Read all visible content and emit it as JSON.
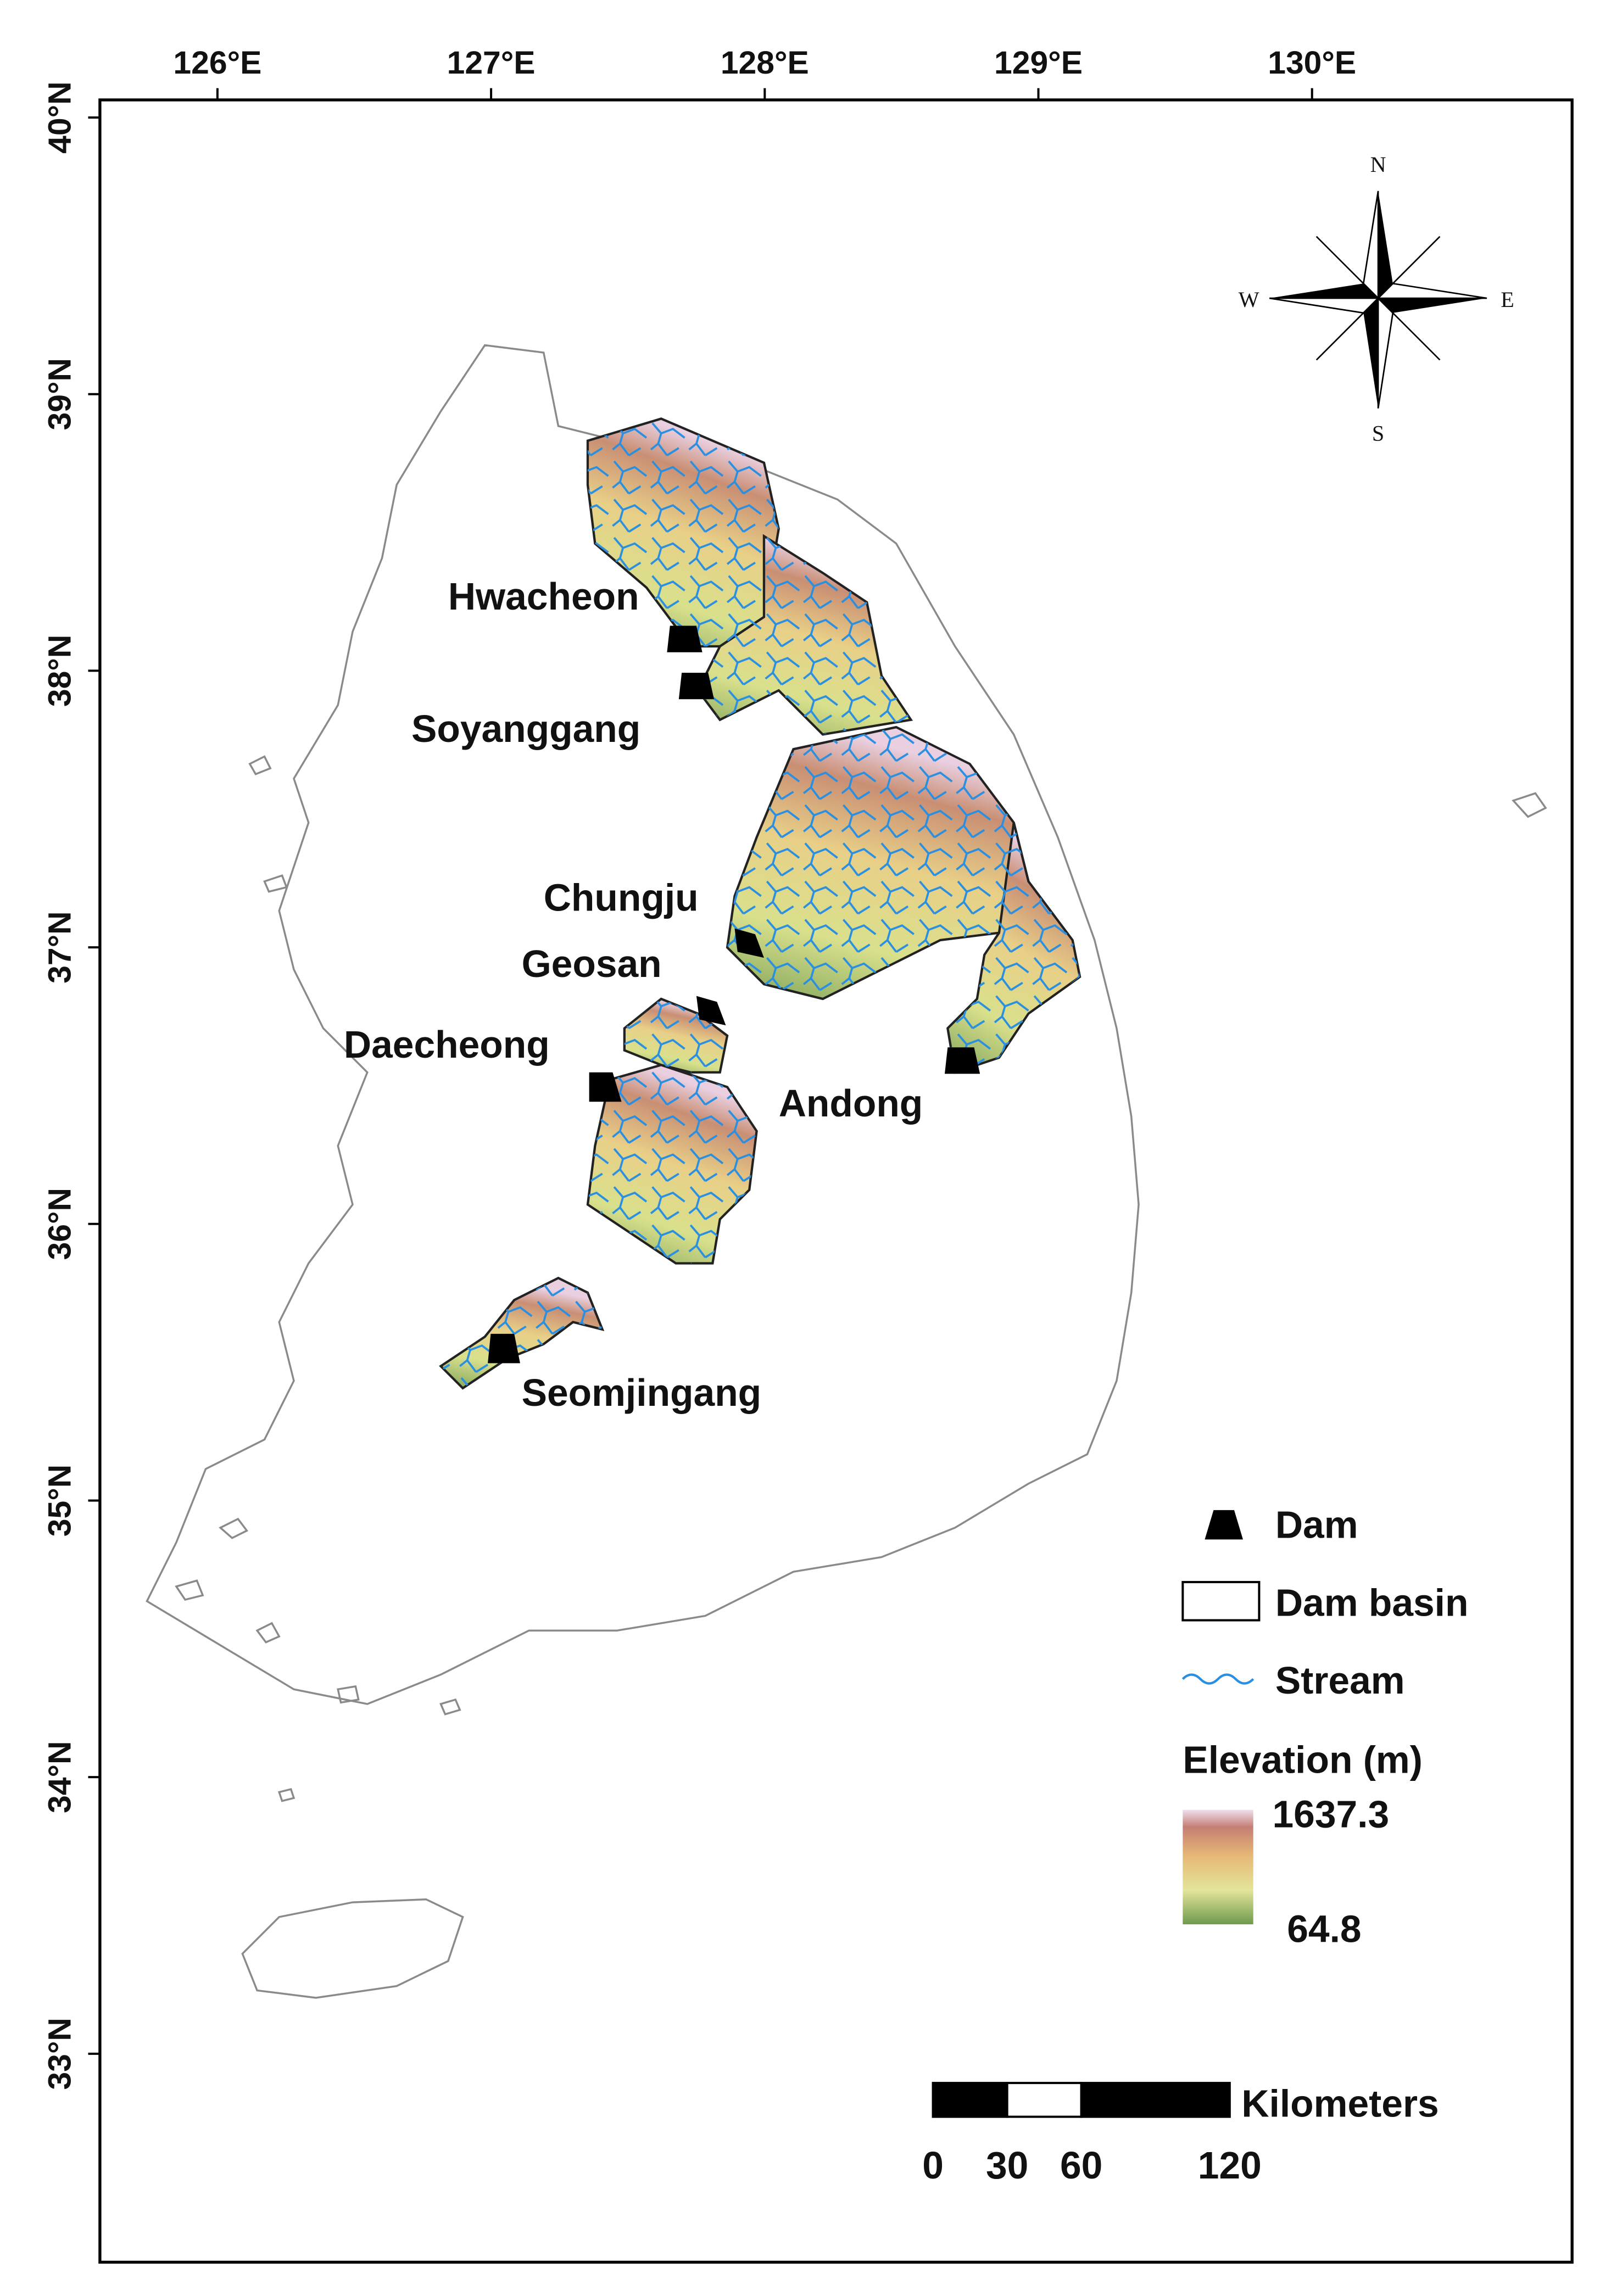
{
  "map": {
    "lon_ticks": [
      {
        "value": 126,
        "label": "126°E"
      },
      {
        "value": 127,
        "label": "127°E"
      },
      {
        "value": 128,
        "label": "128°E"
      },
      {
        "value": 129,
        "label": "129°E"
      },
      {
        "value": 130,
        "label": "130°E"
      }
    ],
    "lat_ticks": [
      {
        "value": 40,
        "label": "40°N"
      },
      {
        "value": 39,
        "label": "39°N"
      },
      {
        "value": 38,
        "label": "38°N"
      },
      {
        "value": 37,
        "label": "37°N"
      },
      {
        "value": 36,
        "label": "36°N"
      },
      {
        "value": 35,
        "label": "35°N"
      },
      {
        "value": 34,
        "label": "34°N"
      },
      {
        "value": 33,
        "label": "33°N"
      }
    ],
    "compass": {
      "n": "N",
      "e": "E",
      "s": "S",
      "w": "W"
    },
    "dams": [
      "Hwacheon",
      "Soyanggang",
      "Chungju",
      "Geosan",
      "Daecheong",
      "Andong",
      "Seomjingang"
    ],
    "legend": {
      "dam": "Dam",
      "basin": "Dam basin",
      "stream": "Stream",
      "elevation_title": "Elevation (m)",
      "elevation_max": 1637.3,
      "elevation_min": 64.8
    },
    "scale_bar": {
      "ticks": [
        0,
        30,
        60,
        120
      ],
      "unit": "Kilometers"
    }
  }
}
